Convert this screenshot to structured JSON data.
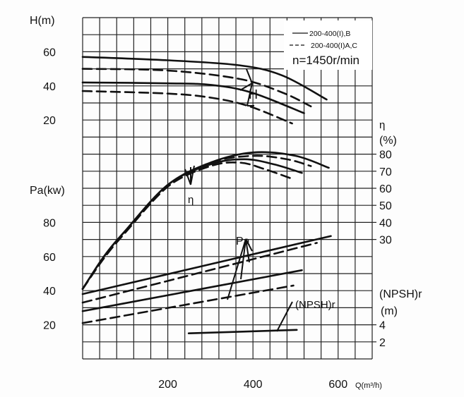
{
  "chart_data": {
    "type": "line",
    "grid": true,
    "legend_placement": "top-right",
    "legend": [
      {
        "label": "200-400(I),B",
        "style": "solid"
      },
      {
        "label": "200-400(I)A,C",
        "style": "dashed"
      }
    ],
    "speed_note": "n=1450r/min",
    "xaxis": {
      "label": "Q(m³/h)",
      "range": [
        0,
        680
      ],
      "ticks": [
        "200",
        "400",
        "600"
      ],
      "tick_values": [
        200,
        400,
        600
      ]
    },
    "axes": {
      "H": {
        "label": "H(m)",
        "range": [
          0,
          80
        ],
        "ticks": [
          "20",
          "40",
          "60"
        ],
        "tick_values": [
          20,
          40,
          60
        ],
        "side": "left"
      },
      "Pa": {
        "label": "Pa(kw)",
        "range": [
          0,
          200
        ],
        "ticks": [
          "20",
          "40",
          "60",
          "80"
        ],
        "tick_values": [
          20,
          40,
          60,
          80
        ],
        "side": "left"
      },
      "eta": {
        "label": "η",
        "unit": "(%)",
        "range": [
          0,
          80
        ],
        "ticks": [
          "30",
          "40",
          "50",
          "60",
          "70",
          "80"
        ],
        "tick_values": [
          30,
          40,
          50,
          60,
          70,
          80
        ],
        "side": "right"
      },
      "NPSH": {
        "label": "(NPSH)r",
        "unit": "(m)",
        "range": [
          0,
          40
        ],
        "ticks": [
          "2",
          "4"
        ],
        "tick_values": [
          2,
          4
        ],
        "side": "right"
      }
    },
    "curve_labels": {
      "H": "H",
      "eta": "η",
      "Pa": "Pa",
      "NPSH": "(NPSH)r"
    },
    "series": [
      {
        "axis": "H",
        "style": "solid",
        "x": [
          0,
          200,
          370,
          470,
          573
        ],
        "y": [
          57,
          55,
          52,
          46,
          32
        ]
      },
      {
        "axis": "H",
        "style": "dashed",
        "x": [
          0,
          200,
          370,
          470,
          536
        ],
        "y": [
          50,
          49,
          44,
          36,
          28
        ]
      },
      {
        "axis": "H",
        "style": "solid",
        "x": [
          0,
          200,
          304,
          398,
          520
        ],
        "y": [
          42,
          41.5,
          40.5,
          36,
          24
        ]
      },
      {
        "axis": "H",
        "style": "dashed",
        "x": [
          0,
          200,
          304,
          392,
          492
        ],
        "y": [
          37,
          35.5,
          33,
          28,
          18
        ]
      },
      {
        "axis": "eta",
        "style": "solid",
        "x": [
          0,
          50,
          100,
          200,
          300,
          400,
          500,
          578
        ],
        "y": [
          1,
          20,
          35,
          62,
          75,
          81,
          79,
          72
        ]
      },
      {
        "axis": "eta",
        "style": "dashed",
        "x": [
          0,
          50,
          100,
          200,
          300,
          400,
          480,
          536
        ],
        "y": [
          1,
          19,
          34,
          61,
          75,
          79,
          77,
          73
        ]
      },
      {
        "axis": "eta",
        "style": "solid",
        "x": [
          0,
          50,
          100,
          200,
          300,
          380,
          450,
          515
        ],
        "y": [
          1,
          20,
          35,
          62,
          74,
          77,
          74,
          69
        ]
      },
      {
        "axis": "eta",
        "style": "dashed",
        "x": [
          0,
          50,
          100,
          200,
          300,
          370,
          430,
          487
        ],
        "y": [
          1,
          19,
          34,
          61,
          73,
          75,
          71,
          66
        ]
      },
      {
        "axis": "Pa",
        "style": "solid",
        "x": [
          0,
          583
        ],
        "y": [
          38,
          72
        ]
      },
      {
        "axis": "Pa",
        "style": "dashed",
        "x": [
          0,
          550
        ],
        "y": [
          33,
          68
        ]
      },
      {
        "axis": "Pa",
        "style": "solid",
        "x": [
          0,
          515
        ],
        "y": [
          28,
          52
        ]
      },
      {
        "axis": "Pa",
        "style": "dashed",
        "x": [
          0,
          495
        ],
        "y": [
          21,
          43
        ]
      },
      {
        "axis": "NPSH",
        "style": "solid",
        "x": [
          249,
          503
        ],
        "y": [
          3.0,
          3.4
        ]
      }
    ]
  }
}
